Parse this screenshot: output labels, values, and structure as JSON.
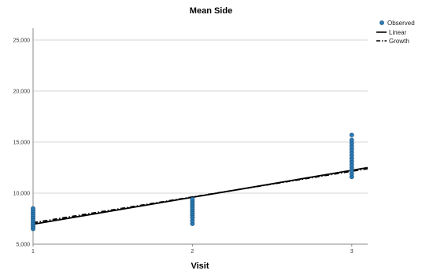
{
  "chart_data": {
    "type": "scatter",
    "title": "Mean Side",
    "xlabel": "Visit",
    "ylabel": "",
    "xlim": [
      1,
      3.1
    ],
    "ylim": [
      5000,
      26000
    ],
    "x_ticks": [
      1,
      2,
      3
    ],
    "x_tick_labels": [
      "1",
      "2",
      "3"
    ],
    "y_ticks": [
      5000,
      10000,
      15000,
      20000,
      25000
    ],
    "y_tick_labels": [
      "5,000",
      "10,000",
      "15,000",
      "20,000",
      "25,000"
    ],
    "grid": "horizontal",
    "legend_position": "top-right",
    "legend": [
      "Observed",
      "Linear",
      "Growth"
    ],
    "series": [
      {
        "name": "Observed",
        "kind": "points",
        "color": "#2a7ab5",
        "points": [
          [
            1,
            6500
          ],
          [
            1,
            6700
          ],
          [
            1,
            6900
          ],
          [
            1,
            7100
          ],
          [
            1,
            7300
          ],
          [
            1,
            7500
          ],
          [
            1,
            7700
          ],
          [
            1,
            7900
          ],
          [
            1,
            8100
          ],
          [
            1,
            8300
          ],
          [
            1,
            8500
          ],
          [
            2,
            7000
          ],
          [
            2,
            7300
          ],
          [
            2,
            7600
          ],
          [
            2,
            7800
          ],
          [
            2,
            8000
          ],
          [
            2,
            8200
          ],
          [
            2,
            8400
          ],
          [
            2,
            8600
          ],
          [
            2,
            8800
          ],
          [
            2,
            9000
          ],
          [
            2,
            9200
          ],
          [
            2,
            9400
          ],
          [
            3,
            11600
          ],
          [
            3,
            11900
          ],
          [
            3,
            12200
          ],
          [
            3,
            12500
          ],
          [
            3,
            12800
          ],
          [
            3,
            13100
          ],
          [
            3,
            13400
          ],
          [
            3,
            13700
          ],
          [
            3,
            14000
          ],
          [
            3,
            14300
          ],
          [
            3,
            14600
          ],
          [
            3,
            14900
          ],
          [
            3,
            15200
          ],
          [
            3,
            15700
          ]
        ]
      },
      {
        "name": "Linear",
        "kind": "line",
        "style": "solid",
        "color": "#000000",
        "x": [
          1,
          3.1
        ],
        "y": [
          6950,
          12500
        ]
      },
      {
        "name": "Growth",
        "kind": "line",
        "style": "dashdot",
        "color": "#000000",
        "x": [
          1,
          3.1
        ],
        "y": [
          7100,
          12400
        ]
      }
    ]
  }
}
